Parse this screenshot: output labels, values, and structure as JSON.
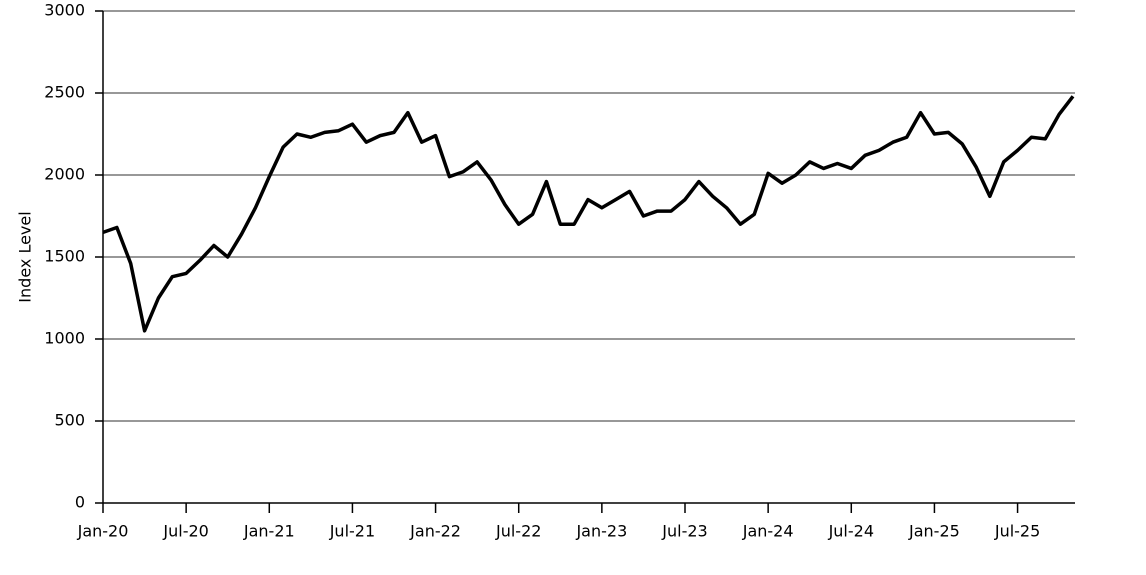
{
  "chart_data": {
    "type": "line",
    "y_label": "Index Level",
    "x": [
      "2020-01",
      "2020-02",
      "2020-03",
      "2020-04",
      "2020-05",
      "2020-06",
      "2020-07",
      "2020-08",
      "2020-09",
      "2020-10",
      "2020-11",
      "2020-12",
      "2021-01",
      "2021-02",
      "2021-03",
      "2021-04",
      "2021-05",
      "2021-06",
      "2021-07",
      "2021-08",
      "2021-09",
      "2021-10",
      "2021-11",
      "2021-12",
      "2022-01",
      "2022-02",
      "2022-03",
      "2022-04",
      "2022-05",
      "2022-06",
      "2022-07",
      "2022-08",
      "2022-09",
      "2022-10",
      "2022-11",
      "2022-12",
      "2023-01",
      "2023-02",
      "2023-03",
      "2023-04",
      "2023-05",
      "2023-06",
      "2023-07",
      "2023-08",
      "2023-09",
      "2023-10",
      "2023-11",
      "2023-12",
      "2024-01",
      "2024-02",
      "2024-03",
      "2024-04",
      "2024-05",
      "2024-06",
      "2024-07",
      "2024-08",
      "2024-09",
      "2024-10",
      "2024-11",
      "2024-12",
      "2025-01",
      "2025-02",
      "2025-03",
      "2025-04",
      "2025-05",
      "2025-06",
      "2025-07",
      "2025-08",
      "2025-09",
      "2025-10",
      "2025-11"
    ],
    "series": [
      {
        "name": "Index Level",
        "color": "#000000",
        "values": [
          1650,
          1680,
          1460,
          1050,
          1250,
          1380,
          1400,
          1480,
          1570,
          1500,
          1640,
          1800,
          1990,
          2170,
          2250,
          2230,
          2260,
          2270,
          2310,
          2200,
          2240,
          2260,
          2380,
          2200,
          2240,
          1990,
          2020,
          2080,
          1970,
          1820,
          1700,
          1760,
          1960,
          1700,
          1700,
          1850,
          1800,
          1850,
          1900,
          1750,
          1780,
          1780,
          1850,
          1960,
          1870,
          1800,
          1700,
          1760,
          2010,
          1950,
          2000,
          2080,
          2040,
          2070,
          2040,
          2120,
          2150,
          2200,
          2230,
          2380,
          2250,
          2260,
          2190,
          2050,
          1870,
          2080,
          2150,
          2230,
          2220,
          2370,
          2480
        ]
      }
    ],
    "xlim": [
      "2020-01",
      "2025-11"
    ],
    "xticks": [
      {
        "value": "2020-01",
        "label": "Jan-20"
      },
      {
        "value": "2020-07",
        "label": "Jul-20"
      },
      {
        "value": "2021-01",
        "label": "Jan-21"
      },
      {
        "value": "2021-07",
        "label": "Jul-21"
      },
      {
        "value": "2022-01",
        "label": "Jan-22"
      },
      {
        "value": "2022-07",
        "label": "Jul-22"
      },
      {
        "value": "2023-01",
        "label": "Jan-23"
      },
      {
        "value": "2023-07",
        "label": "Jul-23"
      },
      {
        "value": "2024-01",
        "label": "Jan-24"
      },
      {
        "value": "2024-07",
        "label": "Jul-24"
      },
      {
        "value": "2025-01",
        "label": "Jan-25"
      },
      {
        "value": "2025-07",
        "label": "Jul-25"
      }
    ],
    "ylim": [
      0,
      3000
    ],
    "yticks": [
      0,
      500,
      1000,
      1500,
      2000,
      2500,
      3000
    ],
    "grid": true
  }
}
